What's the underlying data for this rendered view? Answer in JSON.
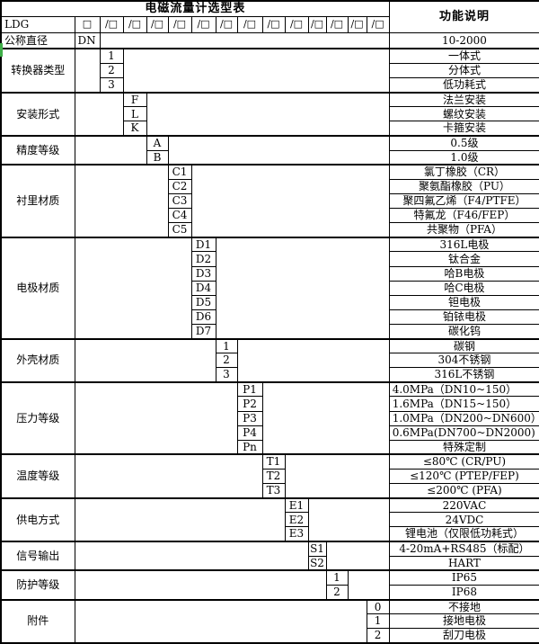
{
  "title": "电磁流量计选型表",
  "right_header": "功能说明",
  "model_row": {
    "prefix": "LDG",
    "box": "□",
    "slot": "/□",
    "slot_count": 13
  },
  "diameter_row": {
    "label": "公称直径",
    "code": "DN",
    "desc": "10-2000"
  },
  "groups": [
    {
      "label": "转换器类型",
      "col": 1,
      "options": [
        {
          "code": "1",
          "desc": "一体式"
        },
        {
          "code": "2",
          "desc": "分体式"
        },
        {
          "code": "3",
          "desc": "低功耗式"
        }
      ]
    },
    {
      "label": "安装形式",
      "col": 2,
      "options": [
        {
          "code": "F",
          "desc": "法兰安装"
        },
        {
          "code": "L",
          "desc": "螺纹安装"
        },
        {
          "code": "K",
          "desc": "卡箍安装"
        }
      ]
    },
    {
      "label": "精度等级",
      "col": 3,
      "options": [
        {
          "code": "A",
          "desc": "0.5级"
        },
        {
          "code": "B",
          "desc": "1.0级"
        }
      ]
    },
    {
      "label": "衬里材质",
      "col": 4,
      "options": [
        {
          "code": "C1",
          "desc": "氯丁橡胶（CR）"
        },
        {
          "code": "C2",
          "desc": "聚氨酯橡胶（PU）"
        },
        {
          "code": "C3",
          "desc": "聚四氟乙烯（F4/PTFE）"
        },
        {
          "code": "C4",
          "desc": "特氟龙（F46/FEP）"
        },
        {
          "code": "C5",
          "desc": "共聚物（PFA）"
        }
      ]
    },
    {
      "label": "电极材质",
      "col": 5,
      "options": [
        {
          "code": "D1",
          "desc": "316L电极"
        },
        {
          "code": "D2",
          "desc": "钛合金"
        },
        {
          "code": "D3",
          "desc": "哈B电极"
        },
        {
          "code": "D4",
          "desc": "哈C电极"
        },
        {
          "code": "D5",
          "desc": "钽电极"
        },
        {
          "code": "D6",
          "desc": "铂铱电极"
        },
        {
          "code": "D7",
          "desc": "碳化钨"
        }
      ]
    },
    {
      "label": "外壳材质",
      "col": 6,
      "options": [
        {
          "code": "1",
          "desc": "碳钢"
        },
        {
          "code": "2",
          "desc": "304不锈钢"
        },
        {
          "code": "3",
          "desc": "316L不锈钢"
        }
      ]
    },
    {
      "label": "压力等级",
      "col": 7,
      "options": [
        {
          "code": "P1",
          "desc": "4.0MPa（DN10~150）",
          "align": "left"
        },
        {
          "code": "P2",
          "desc": "1.6MPa（DN15~150）",
          "align": "left"
        },
        {
          "code": "P3",
          "desc": "1.0MPa（DN200~DN600）",
          "align": "left"
        },
        {
          "code": "P4",
          "desc": "0.6MPa(DN700~DN2000)",
          "align": "left"
        },
        {
          "code": "Pn",
          "desc": "特殊定制"
        }
      ]
    },
    {
      "label": "温度等级",
      "col": 8,
      "options": [
        {
          "code": "T1",
          "desc": "≤80℃ (CR/PU)"
        },
        {
          "code": "T2",
          "desc": "≤120℃ (PTEP/FEP)"
        },
        {
          "code": "T3",
          "desc": "≤200℃ (PFA)"
        }
      ]
    },
    {
      "label": "供电方式",
      "col": 9,
      "options": [
        {
          "code": "E1",
          "desc": "220VAC"
        },
        {
          "code": "E2",
          "desc": "24VDC"
        },
        {
          "code": "E3",
          "desc": "锂电池（仅限低功耗式）"
        }
      ]
    },
    {
      "label": "信号输出",
      "col": 10,
      "options": [
        {
          "code": "S1",
          "desc": "4-20mA+RS485（标配）"
        },
        {
          "code": "S2",
          "desc": "HART"
        }
      ]
    },
    {
      "label": "防护等级",
      "col": 11,
      "options": [
        {
          "code": "1",
          "desc": "IP65"
        },
        {
          "code": "2",
          "desc": "IP68"
        }
      ]
    },
    {
      "label": "附件",
      "col": 13,
      "options": [
        {
          "code": "0",
          "desc": "不接地"
        },
        {
          "code": "1",
          "desc": "接地电极"
        },
        {
          "code": "2",
          "desc": "刮刀电极"
        }
      ]
    }
  ]
}
